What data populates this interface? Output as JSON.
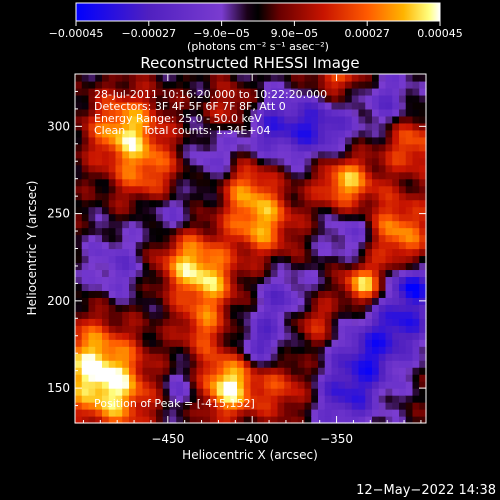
{
  "chart_data": {
    "type": "heatmap",
    "title": "Reconstructed RHESSI Image",
    "xlabel": "Heliocentric X (arcsec)",
    "ylabel": "Heliocentric Y (arcsec)",
    "xlim": [
      -505,
      -297
    ],
    "ylim": [
      130,
      330
    ],
    "xticks": [
      -450,
      -400,
      -350
    ],
    "xtick_labels": [
      "−450",
      "−400",
      "−350"
    ],
    "yticks": [
      150,
      200,
      250,
      300
    ],
    "ytick_labels": [
      "150",
      "200",
      "250",
      "300"
    ],
    "colorbar": {
      "range": [
        -0.00045,
        0.00045
      ],
      "ticks": [
        -0.00045,
        -0.00027,
        -9e-05,
        9e-05,
        0.00027,
        0.00045
      ],
      "tick_labels": [
        "−0.00045",
        "−0.00027",
        "−9.0e−05",
        "9.0e−05",
        "0.00027",
        "0.00045"
      ],
      "units": "(photons cm⁻² s⁻¹ asec⁻²)",
      "colors": [
        "#0000ff",
        "#5020c0",
        "#7a3cd0",
        "#1a0018",
        "#000000",
        "#6a0000",
        "#c81400",
        "#ff5a00",
        "#ffb400",
        "#ffff80",
        "#ffffff"
      ]
    },
    "annotations": [
      "28-Jul-2011 10:16:20.000 to 10:22:20.000",
      "Detectors: 3F 4F 5F 6F 7F 8F, Att 0",
      "Energy Range: 25.0 - 50.0 keV",
      "Clean     Total counts: 1.34E+04"
    ],
    "peak_label": "Position of Peak = [-415,152]",
    "peak": [
      -415,
      152
    ],
    "blobs": [
      {
        "x": -415,
        "y": 152,
        "v": 1.0,
        "s": 13
      },
      {
        "x": -475,
        "y": 298,
        "v": 0.85,
        "s": 15
      },
      {
        "x": -495,
        "y": 165,
        "v": 0.8,
        "s": 18
      },
      {
        "x": -480,
        "y": 145,
        "v": 0.6,
        "s": 16
      },
      {
        "x": -440,
        "y": 225,
        "v": 0.7,
        "s": 14
      },
      {
        "x": -425,
        "y": 210,
        "v": 0.6,
        "s": 12
      },
      {
        "x": -395,
        "y": 245,
        "v": 0.75,
        "s": 14
      },
      {
        "x": -405,
        "y": 270,
        "v": 0.6,
        "s": 12
      },
      {
        "x": -460,
        "y": 270,
        "v": 0.55,
        "s": 14
      },
      {
        "x": -345,
        "y": 268,
        "v": 0.85,
        "s": 12
      },
      {
        "x": -315,
        "y": 240,
        "v": 0.75,
        "s": 14
      },
      {
        "x": -305,
        "y": 290,
        "v": 0.6,
        "s": 12
      },
      {
        "x": -335,
        "y": 210,
        "v": 0.85,
        "s": 8
      },
      {
        "x": -365,
        "y": 190,
        "v": 0.55,
        "s": 10
      },
      {
        "x": -350,
        "y": 330,
        "v": 0.6,
        "s": 12
      },
      {
        "x": -410,
        "y": 310,
        "v": 0.5,
        "s": 10
      },
      {
        "x": -430,
        "y": 185,
        "v": 0.5,
        "s": 10
      },
      {
        "x": -380,
        "y": 150,
        "v": 0.45,
        "s": 12
      },
      {
        "x": -390,
        "y": 300,
        "v": -0.6,
        "s": 14
      },
      {
        "x": -360,
        "y": 300,
        "v": -0.7,
        "s": 14
      },
      {
        "x": -330,
        "y": 170,
        "v": -0.7,
        "s": 14
      },
      {
        "x": -345,
        "y": 145,
        "v": -0.65,
        "s": 14
      },
      {
        "x": -310,
        "y": 190,
        "v": -0.7,
        "s": 12
      },
      {
        "x": -380,
        "y": 200,
        "v": -0.55,
        "s": 12
      },
      {
        "x": -450,
        "y": 250,
        "v": -0.5,
        "s": 12
      },
      {
        "x": -395,
        "y": 175,
        "v": -0.55,
        "s": 10
      },
      {
        "x": -305,
        "y": 210,
        "v": -0.9,
        "s": 7
      },
      {
        "x": -340,
        "y": 240,
        "v": -0.5,
        "s": 12
      },
      {
        "x": -420,
        "y": 280,
        "v": -0.45,
        "s": 12
      },
      {
        "x": -480,
        "y": 220,
        "v": -0.4,
        "s": 14
      },
      {
        "x": -440,
        "y": 150,
        "v": -0.4,
        "s": 10
      },
      {
        "x": -320,
        "y": 315,
        "v": -0.45,
        "s": 12
      }
    ]
  },
  "footer": {
    "timestamp": "12−May−2022 14:38"
  }
}
